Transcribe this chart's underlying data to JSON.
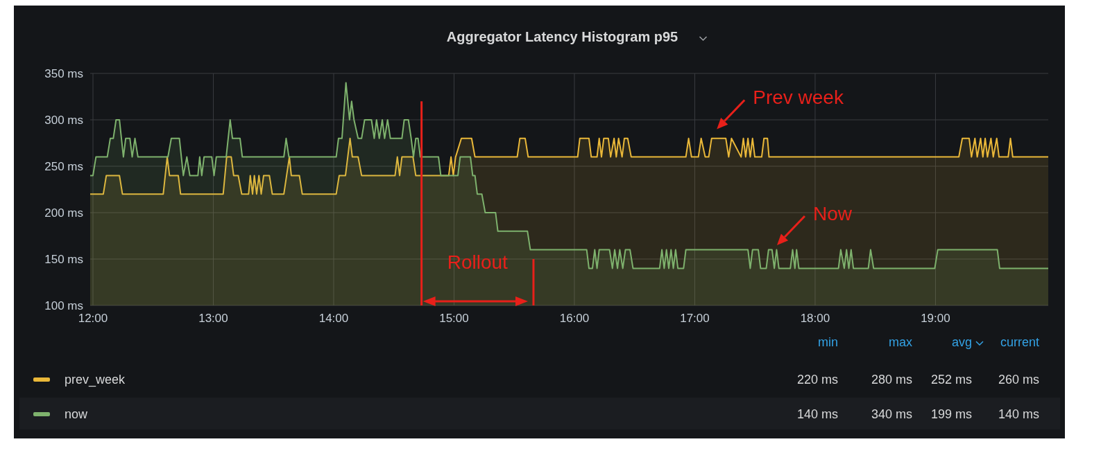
{
  "chart_data": {
    "type": "area",
    "title": "Aggregator Latency Histogram p95",
    "xlim": [
      11.977,
      19.937
    ],
    "xticks": [
      {
        "value": 12,
        "label": "12:00"
      },
      {
        "value": 13,
        "label": "13:00"
      },
      {
        "value": 14,
        "label": "14:00"
      },
      {
        "value": 15,
        "label": "15:00"
      },
      {
        "value": 16,
        "label": "16:00"
      },
      {
        "value": 17,
        "label": "17:00"
      },
      {
        "value": 18,
        "label": "18:00"
      },
      {
        "value": 19,
        "label": "19:00"
      }
    ],
    "ylim": [
      100,
      350
    ],
    "yticks": [
      {
        "value": 100,
        "label": "100 ms"
      },
      {
        "value": 150,
        "label": "150 ms"
      },
      {
        "value": 200,
        "label": "200 ms"
      },
      {
        "value": 250,
        "label": "250 ms"
      },
      {
        "value": 300,
        "label": "300 ms"
      },
      {
        "value": 350,
        "label": "350 ms"
      }
    ],
    "grid": true,
    "legend": "bottom",
    "series": [
      {
        "name": "prev_week",
        "color": "#eab839",
        "x": [
          11.977,
          12.086,
          12.111,
          12.22,
          12.245,
          12.584,
          12.617,
          12.636,
          12.709,
          12.728,
          13.082,
          13.111,
          13.149,
          13.169,
          13.207,
          13.236,
          13.293,
          13.307,
          13.326,
          13.341,
          13.36,
          13.379,
          13.398,
          13.418,
          13.466,
          13.49,
          13.586,
          13.609,
          13.632,
          13.648,
          13.715,
          13.739,
          14.021,
          14.046,
          14.098,
          14.117,
          14.136,
          14.155,
          14.203,
          14.232,
          14.51,
          14.529,
          14.548,
          14.567,
          14.659,
          14.682,
          14.956,
          14.975,
          14.994,
          15.013,
          15.061,
          15.146,
          15.174,
          15.525,
          15.547,
          15.591,
          15.616,
          16.027,
          16.045,
          16.121,
          16.14,
          16.188,
          16.206,
          16.225,
          16.244,
          16.282,
          16.301,
          16.33,
          16.348,
          16.367,
          16.396,
          16.415,
          16.443,
          16.472,
          16.926,
          16.949,
          16.973,
          17.03,
          17.053,
          17.087,
          17.116,
          17.14,
          17.258,
          17.282,
          17.305,
          17.385,
          17.404,
          17.423,
          17.442,
          17.461,
          17.48,
          17.499,
          17.556,
          17.575,
          17.604,
          17.617,
          19.194,
          19.223,
          19.28,
          19.299,
          19.328,
          19.347,
          19.375,
          19.394,
          19.413,
          19.432,
          19.461,
          19.48,
          19.509,
          19.528,
          19.604,
          19.623,
          19.642,
          19.937
        ],
        "values": [
          220,
          220,
          240,
          240,
          220,
          220,
          260,
          240,
          240,
          220,
          220,
          260,
          260,
          240,
          240,
          220,
          220,
          240,
          220,
          240,
          220,
          240,
          220,
          240,
          240,
          220,
          220,
          240,
          260,
          240,
          240,
          220,
          220,
          240,
          240,
          260,
          280,
          260,
          260,
          240,
          240,
          260,
          240,
          260,
          260,
          240,
          240,
          260,
          240,
          260,
          280,
          280,
          260,
          260,
          280,
          280,
          260,
          260,
          280,
          280,
          260,
          260,
          280,
          260,
          280,
          280,
          260,
          280,
          260,
          280,
          260,
          280,
          280,
          260,
          260,
          280,
          260,
          260,
          280,
          260,
          260,
          280,
          280,
          260,
          280,
          260,
          280,
          260,
          280,
          260,
          280,
          260,
          260,
          280,
          280,
          260,
          260,
          280,
          280,
          260,
          280,
          260,
          280,
          260,
          280,
          260,
          280,
          260,
          280,
          260,
          260,
          280,
          260,
          260
        ]
      },
      {
        "name": "now",
        "color": "#7eb26d",
        "x": [
          11.977,
          12.0,
          12.025,
          12.119,
          12.144,
          12.169,
          12.192,
          12.22,
          12.253,
          12.272,
          12.307,
          12.326,
          12.349,
          12.374,
          12.623,
          12.651,
          12.718,
          12.751,
          12.78,
          12.805,
          12.872,
          12.887,
          12.904,
          12.923,
          12.987,
          13.006,
          13.025,
          13.107,
          13.14,
          13.159,
          13.222,
          13.241,
          13.586,
          13.605,
          13.628,
          14.021,
          14.04,
          14.069,
          14.102,
          14.132,
          14.149,
          14.169,
          14.203,
          14.232,
          14.257,
          14.314,
          14.337,
          14.356,
          14.379,
          14.404,
          14.423,
          14.448,
          14.471,
          14.567,
          14.586,
          14.621,
          14.644,
          14.663,
          14.682,
          14.701,
          14.72,
          14.871,
          14.89,
          15.032,
          15.051,
          15.136,
          15.155,
          15.174,
          15.193,
          15.231,
          15.259,
          15.345,
          15.364,
          15.61,
          15.634,
          16.102,
          16.121,
          16.15,
          16.169,
          16.188,
          16.206,
          16.292,
          16.316,
          16.335,
          16.358,
          16.377,
          16.402,
          16.424,
          16.462,
          16.487,
          16.708,
          16.727,
          16.746,
          16.765,
          16.784,
          16.803,
          16.822,
          16.841,
          16.86,
          16.907,
          16.926,
          17.442,
          17.461,
          17.48,
          17.528,
          17.547,
          17.594,
          17.613,
          17.642,
          17.661,
          17.68,
          17.699,
          17.794,
          17.813,
          17.832,
          17.846,
          17.865,
          18.194,
          18.213,
          18.242,
          18.261,
          18.28,
          18.299,
          18.318,
          18.442,
          18.461,
          18.486,
          18.994,
          19.019,
          19.514,
          19.533,
          19.937
        ],
        "values": [
          240,
          240,
          260,
          260,
          280,
          280,
          300,
          300,
          260,
          280,
          280,
          260,
          280,
          260,
          260,
          280,
          280,
          240,
          260,
          240,
          240,
          260,
          240,
          260,
          260,
          240,
          260,
          260,
          300,
          280,
          280,
          260,
          260,
          280,
          260,
          260,
          280,
          280,
          340,
          300,
          320,
          300,
          280,
          280,
          300,
          300,
          280,
          300,
          280,
          300,
          280,
          300,
          280,
          280,
          300,
          300,
          280,
          260,
          280,
          280,
          260,
          260,
          240,
          240,
          260,
          260,
          240,
          240,
          220,
          220,
          200,
          200,
          180,
          180,
          160,
          160,
          140,
          140,
          160,
          140,
          160,
          160,
          140,
          160,
          140,
          160,
          140,
          160,
          160,
          140,
          140,
          160,
          140,
          160,
          140,
          160,
          140,
          160,
          140,
          140,
          160,
          160,
          140,
          160,
          160,
          140,
          140,
          160,
          160,
          140,
          160,
          140,
          140,
          160,
          140,
          160,
          140,
          140,
          160,
          140,
          160,
          140,
          160,
          140,
          140,
          160,
          140,
          140,
          160,
          160,
          140,
          140
        ]
      }
    ],
    "ref_lines": [
      {
        "axis": "x",
        "value": 14.73,
        "color": "#e8201a"
      },
      {
        "axis": "x",
        "value": 15.66,
        "color": "#e8201a"
      }
    ],
    "annotations": [
      "Prev week",
      {
        "text": "Now",
        "x": 17.66,
        "y": 162
      },
      "Rollout",
      "min",
      "max",
      "avg",
      "current",
      "220 ms",
      "280 ms",
      "252 ms",
      "260 ms",
      "140 ms",
      "340 ms",
      "199 ms",
      "140 ms"
    ]
  }
}
